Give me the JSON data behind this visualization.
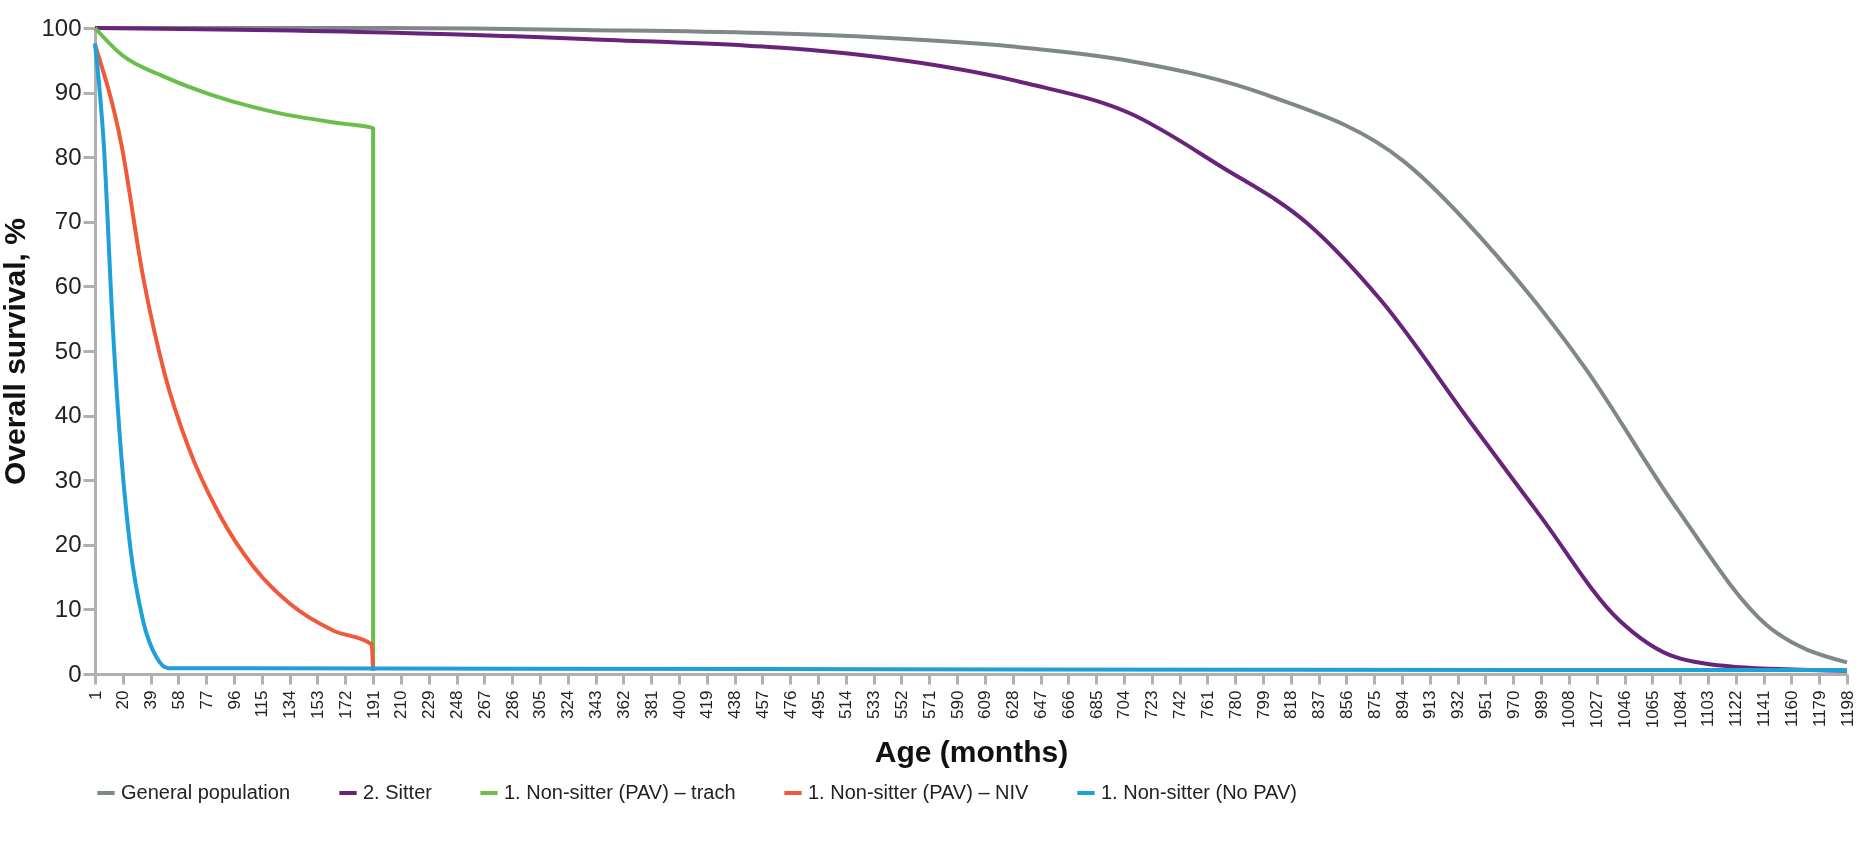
{
  "chart_data": {
    "type": "line",
    "xlabel": "Age (months)",
    "ylabel": "Overall survival, %",
    "xlim": [
      1,
      1198
    ],
    "xticks": [
      1,
      20,
      39,
      58,
      77,
      96,
      115,
      134,
      153,
      172,
      191,
      210,
      229,
      248,
      267,
      286,
      305,
      324,
      343,
      362,
      381,
      400,
      419,
      438,
      457,
      476,
      495,
      514,
      533,
      552,
      571,
      590,
      609,
      628,
      647,
      666,
      685,
      704,
      723,
      742,
      761,
      780,
      799,
      818,
      837,
      856,
      875,
      894,
      913,
      932,
      951,
      970,
      989,
      1008,
      1027,
      1046,
      1065,
      1084,
      1103,
      1122,
      1141,
      1160,
      1179,
      1198
    ],
    "ylim": [
      0,
      100
    ],
    "yticks": [
      0,
      10,
      20,
      30,
      40,
      50,
      60,
      70,
      80,
      90,
      100
    ],
    "legend": "bottom",
    "series": [
      {
        "name": "General population",
        "color": "#7f8789",
        "x": [
          1,
          200,
          335,
          500,
          638,
          708,
          802,
          895,
          957,
          1019,
          1080,
          1143,
          1198
        ],
        "values": [
          100,
          100,
          99.7,
          98.9,
          96.9,
          94.9,
          89.6,
          79.4,
          65.2,
          47.4,
          26.2,
          7.6,
          1.8
        ]
      },
      {
        "name": "2. Sitter",
        "color": "#68247a",
        "x": [
          1,
          200,
          335,
          517,
          638,
          708,
          770,
          829,
          879,
          941,
          988,
          1042,
          1081,
          1122,
          1198
        ],
        "values": [
          100,
          99.3,
          98.3,
          96,
          91.4,
          86.8,
          78.6,
          69.8,
          58,
          38.9,
          24.6,
          8.4,
          2.6,
          1.1,
          0.5
        ]
      },
      {
        "name": "1. Non-sitter (PAV) – trach",
        "color": "#6abf4b",
        "x": [
          1,
          19,
          49,
          80,
          125,
          170,
          191,
          191
        ],
        "values": [
          100,
          95.9,
          92.4,
          89.7,
          86.9,
          85.2,
          84.5,
          0.5
        ]
      },
      {
        "name": "1. Non-sitter (PAV) – NIV",
        "color": "#ef5a3a",
        "x": [
          1,
          19,
          34,
          49,
          65,
          86,
          110,
          134,
          164,
          190,
          191
        ],
        "values": [
          97.4,
          82,
          61.3,
          46.1,
          35,
          24.7,
          16.4,
          10.9,
          6.7,
          4.6,
          0.5
        ]
      },
      {
        "name": "1. Non-sitter (No PAV)",
        "color": "#1ea1d8",
        "x": [
          1,
          7,
          13,
          19,
          25,
          34,
          43,
          51,
          1198
        ],
        "values": [
          97.6,
          82,
          54.4,
          33.7,
          19.8,
          8.1,
          2.6,
          0.9,
          0.6
        ]
      }
    ]
  }
}
